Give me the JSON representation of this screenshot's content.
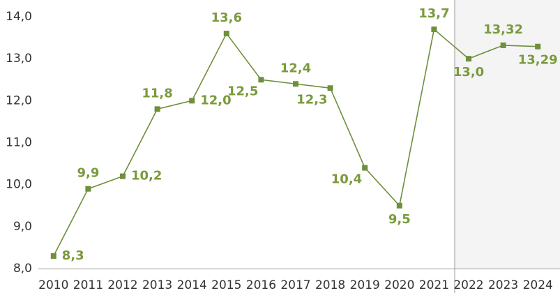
{
  "chart_data": {
    "type": "line",
    "categories": [
      "2010",
      "2011",
      "2012",
      "2013",
      "2014",
      "2015",
      "2016",
      "2017",
      "2018",
      "2019",
      "2020",
      "2021",
      "2022",
      "2023",
      "2024"
    ],
    "series": [
      {
        "color": "#6e8f3c",
        "values": [
          8.3,
          9.9,
          10.2,
          11.8,
          12.0,
          13.6,
          12.5,
          12.4,
          12.3,
          10.4,
          9.5,
          13.7,
          13.0,
          13.32,
          13.29
        ],
        "value_labels": [
          "8,3",
          "9,9",
          "10,2",
          "11,8",
          "12,0",
          "13,6",
          "12,5",
          "12,4",
          "12,3",
          "10,4",
          "9,5",
          "13,7",
          "13,0",
          "13,32",
          "13,29"
        ]
      }
    ],
    "ylim": [
      8,
      14
    ],
    "yticks": [
      {
        "value": 8,
        "label": "8,0"
      },
      {
        "value": 9,
        "label": "9,0"
      },
      {
        "value": 10,
        "label": "10,0"
      },
      {
        "value": 11,
        "label": "11,0"
      },
      {
        "value": 12,
        "label": "12,0"
      },
      {
        "value": 13,
        "label": "13,0"
      },
      {
        "value": 14,
        "label": "14,0"
      }
    ]
  }
}
